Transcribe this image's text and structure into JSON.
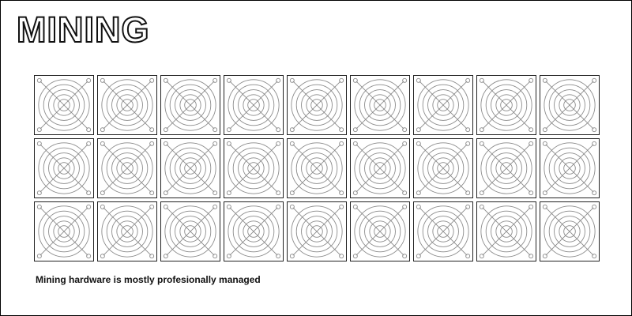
{
  "title": "MINING",
  "caption": "Mining hardware is mostly profesionally managed",
  "fan_icon": "fan-grille-icon",
  "fan_grid": {
    "rows": 3,
    "columns": 9
  },
  "colors": {
    "outline": "#222222",
    "fan_lines": "#8a8a8a",
    "background": "#ffffff"
  }
}
